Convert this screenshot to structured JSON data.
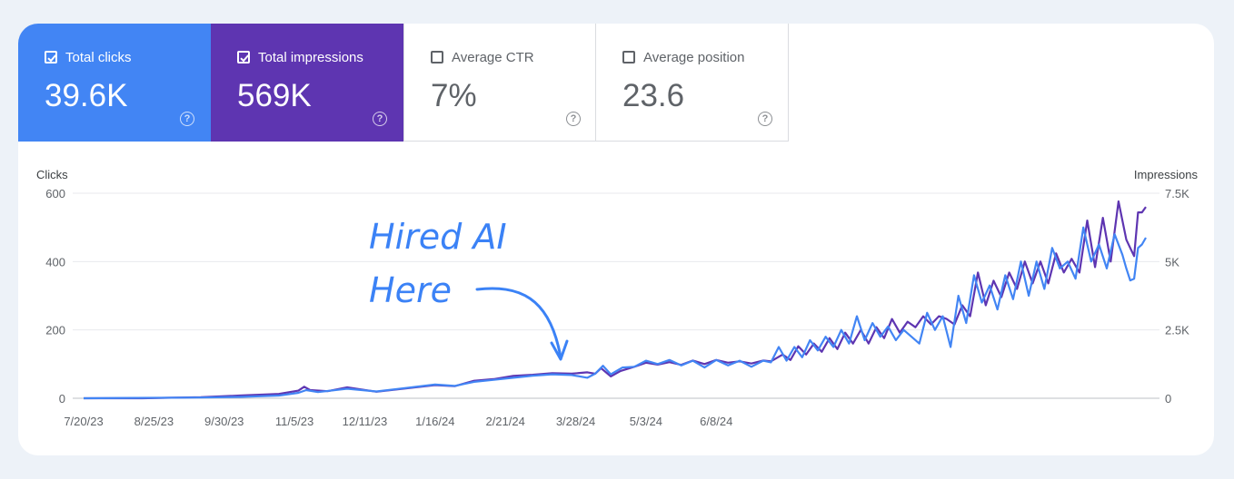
{
  "metrics": [
    {
      "label": "Total clicks",
      "value": "39.6K",
      "checked": true,
      "color": "#4285f4"
    },
    {
      "label": "Total impressions",
      "value": "569K",
      "checked": true,
      "color": "#5e35b1"
    },
    {
      "label": "Average CTR",
      "value": "7%",
      "checked": false
    },
    {
      "label": "Average position",
      "value": "23.6",
      "checked": false
    }
  ],
  "help_glyph": "?",
  "chart_data": {
    "type": "line",
    "annotation": [
      "Hired AI",
      "Here"
    ],
    "xlabel": "",
    "x_ticks": [
      "7/20/23",
      "8/25/23",
      "9/30/23",
      "11/5/23",
      "12/11/23",
      "1/16/24",
      "2/21/24",
      "3/28/24",
      "5/3/24",
      "6/8/24"
    ],
    "y_left": {
      "label": "Clicks",
      "ticks": [
        "0",
        "200",
        "400",
        "600"
      ],
      "lim": [
        0,
        600
      ]
    },
    "y_right": {
      "label": "Impressions",
      "ticks": [
        "0",
        "2.5K",
        "5K",
        "7.5K"
      ],
      "lim": [
        0,
        7500
      ]
    },
    "grid": true,
    "series": [
      {
        "axis": "right",
        "color": "#5e35b1",
        "points": [
          [
            0,
            0
          ],
          [
            30,
            0
          ],
          [
            60,
            40
          ],
          [
            80,
            100
          ],
          [
            100,
            160
          ],
          [
            110,
            280
          ],
          [
            113,
            420
          ],
          [
            116,
            300
          ],
          [
            125,
            260
          ],
          [
            135,
            400
          ],
          [
            150,
            240
          ],
          [
            165,
            360
          ],
          [
            180,
            480
          ],
          [
            190,
            440
          ],
          [
            200,
            640
          ],
          [
            210,
            700
          ],
          [
            220,
            820
          ],
          [
            230,
            860
          ],
          [
            240,
            920
          ],
          [
            250,
            900
          ],
          [
            258,
            950
          ],
          [
            262,
            900
          ],
          [
            265,
            1100
          ],
          [
            270,
            800
          ],
          [
            275,
            1000
          ],
          [
            282,
            1150
          ],
          [
            288,
            1300
          ],
          [
            294,
            1230
          ],
          [
            300,
            1320
          ],
          [
            306,
            1220
          ],
          [
            312,
            1380
          ],
          [
            318,
            1250
          ],
          [
            324,
            1400
          ],
          [
            330,
            1300
          ],
          [
            336,
            1350
          ],
          [
            342,
            1270
          ],
          [
            348,
            1380
          ],
          [
            352,
            1350
          ],
          [
            358,
            1600
          ],
          [
            362,
            1400
          ],
          [
            366,
            1900
          ],
          [
            370,
            1600
          ],
          [
            374,
            2000
          ],
          [
            378,
            1700
          ],
          [
            382,
            2200
          ],
          [
            386,
            1800
          ],
          [
            390,
            2400
          ],
          [
            394,
            2000
          ],
          [
            398,
            2500
          ],
          [
            402,
            2000
          ],
          [
            406,
            2600
          ],
          [
            410,
            2200
          ],
          [
            414,
            2900
          ],
          [
            418,
            2400
          ],
          [
            422,
            2800
          ],
          [
            426,
            2600
          ],
          [
            430,
            3000
          ],
          [
            434,
            2700
          ],
          [
            438,
            3000
          ],
          [
            442,
            2900
          ],
          [
            446,
            2700
          ],
          [
            450,
            3400
          ],
          [
            454,
            3000
          ],
          [
            458,
            4600
          ],
          [
            462,
            3400
          ],
          [
            466,
            4300
          ],
          [
            470,
            3700
          ],
          [
            474,
            4600
          ],
          [
            478,
            4000
          ],
          [
            482,
            5000
          ],
          [
            486,
            4200
          ],
          [
            490,
            5000
          ],
          [
            494,
            4200
          ],
          [
            498,
            5300
          ],
          [
            502,
            4600
          ],
          [
            506,
            5100
          ],
          [
            510,
            4600
          ],
          [
            514,
            6500
          ],
          [
            518,
            4800
          ],
          [
            522,
            6600
          ],
          [
            526,
            5000
          ],
          [
            530,
            7200
          ],
          [
            534,
            5800
          ],
          [
            536,
            5500
          ],
          [
            538,
            5200
          ],
          [
            540,
            6800
          ],
          [
            542,
            6800
          ],
          [
            544,
            7000
          ]
        ]
      },
      {
        "axis": "left",
        "color": "#4285f4",
        "points": [
          [
            0,
            0
          ],
          [
            60,
            2
          ],
          [
            80,
            4
          ],
          [
            100,
            8
          ],
          [
            110,
            16
          ],
          [
            114,
            24
          ],
          [
            120,
            18
          ],
          [
            135,
            28
          ],
          [
            150,
            20
          ],
          [
            165,
            30
          ],
          [
            180,
            40
          ],
          [
            190,
            36
          ],
          [
            200,
            48
          ],
          [
            210,
            54
          ],
          [
            220,
            60
          ],
          [
            230,
            66
          ],
          [
            240,
            70
          ],
          [
            250,
            68
          ],
          [
            258,
            60
          ],
          [
            262,
            72
          ],
          [
            266,
            95
          ],
          [
            270,
            70
          ],
          [
            276,
            90
          ],
          [
            282,
            92
          ],
          [
            288,
            110
          ],
          [
            294,
            100
          ],
          [
            300,
            112
          ],
          [
            306,
            96
          ],
          [
            312,
            110
          ],
          [
            318,
            90
          ],
          [
            324,
            112
          ],
          [
            330,
            96
          ],
          [
            336,
            110
          ],
          [
            342,
            92
          ],
          [
            348,
            110
          ],
          [
            352,
            105
          ],
          [
            356,
            150
          ],
          [
            360,
            110
          ],
          [
            364,
            150
          ],
          [
            368,
            120
          ],
          [
            372,
            170
          ],
          [
            376,
            140
          ],
          [
            380,
            180
          ],
          [
            384,
            150
          ],
          [
            388,
            200
          ],
          [
            392,
            160
          ],
          [
            396,
            240
          ],
          [
            400,
            170
          ],
          [
            404,
            220
          ],
          [
            408,
            180
          ],
          [
            412,
            210
          ],
          [
            416,
            170
          ],
          [
            420,
            200
          ],
          [
            424,
            180
          ],
          [
            428,
            160
          ],
          [
            432,
            250
          ],
          [
            436,
            200
          ],
          [
            440,
            240
          ],
          [
            444,
            150
          ],
          [
            448,
            300
          ],
          [
            452,
            220
          ],
          [
            456,
            360
          ],
          [
            460,
            280
          ],
          [
            464,
            330
          ],
          [
            468,
            260
          ],
          [
            472,
            360
          ],
          [
            476,
            290
          ],
          [
            480,
            400
          ],
          [
            484,
            300
          ],
          [
            488,
            400
          ],
          [
            492,
            320
          ],
          [
            496,
            440
          ],
          [
            500,
            380
          ],
          [
            504,
            400
          ],
          [
            508,
            350
          ],
          [
            512,
            500
          ],
          [
            516,
            400
          ],
          [
            520,
            450
          ],
          [
            524,
            380
          ],
          [
            528,
            480
          ],
          [
            532,
            420
          ],
          [
            534,
            380
          ],
          [
            536,
            345
          ],
          [
            538,
            350
          ],
          [
            540,
            440
          ],
          [
            542,
            450
          ],
          [
            544,
            470
          ]
        ]
      }
    ]
  }
}
